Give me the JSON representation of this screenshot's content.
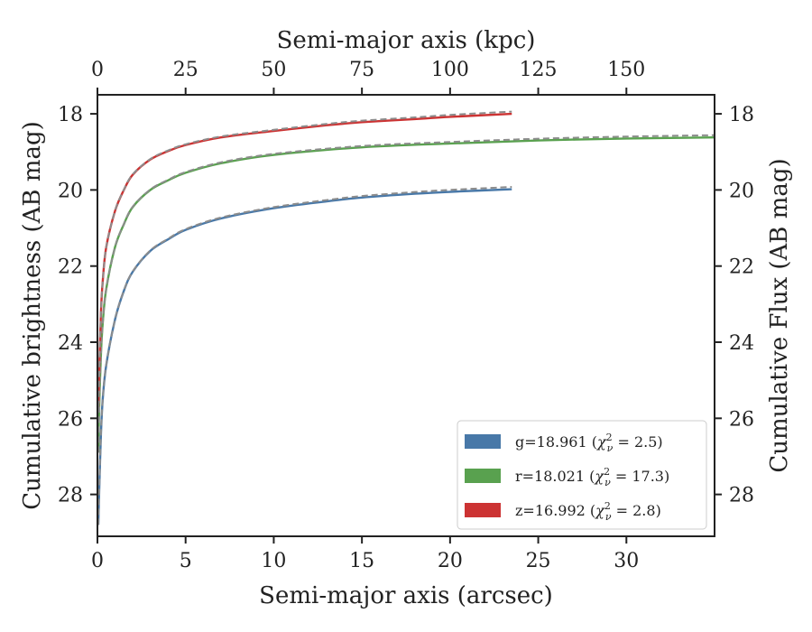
{
  "chart_data": {
    "type": "line",
    "title": "",
    "xlabel": "Semi-major axis (arcsec)",
    "xlabel_top": "Semi-major axis (kpc)",
    "ylabel": "Cumulative brightness (AB mag)",
    "ylabel_right": "Cumulative Flux (AB mag)",
    "xlim": [
      0,
      35
    ],
    "xlim_top": [
      0,
      175
    ],
    "ylim": [
      29.1,
      17.5
    ],
    "y_inverted": true,
    "x_ticks": [
      "0",
      "5",
      "10",
      "15",
      "20",
      "25",
      "30"
    ],
    "x_tick_values": [
      0,
      5,
      10,
      15,
      20,
      25,
      30
    ],
    "x_top_ticks": [
      "0",
      "25",
      "50",
      "75",
      "100",
      "125",
      "150"
    ],
    "x_top_tick_values": [
      0,
      25,
      50,
      75,
      100,
      125,
      150
    ],
    "y_ticks": [
      "18",
      "20",
      "22",
      "24",
      "26",
      "28"
    ],
    "y_tick_values": [
      18,
      20,
      22,
      24,
      26,
      28
    ],
    "legend_position": "lower-right",
    "grid": false,
    "model_style": "gray dashed line over each curve",
    "model_color": "#8c8c8c",
    "series": [
      {
        "name": "g",
        "legend_label": "g=18.961 (χ²ν = 2.5)",
        "legend_prefix": "g=18.961 (",
        "legend_value": " = 2.5)",
        "color": "#4878a8",
        "x": [
          0.05,
          0.1,
          0.2,
          0.3,
          0.5,
          1,
          1.5,
          2,
          3,
          4,
          5,
          7,
          10,
          13,
          15,
          18,
          20,
          23.5
        ],
        "y": [
          28.8,
          27.9,
          26.4,
          25.5,
          24.6,
          23.4,
          22.65,
          22.15,
          21.6,
          21.3,
          21.05,
          20.75,
          20.48,
          20.3,
          20.2,
          20.1,
          20.05,
          19.98
        ]
      },
      {
        "name": "r",
        "legend_label": "r=18.021 (χ²ν = 17.3)",
        "legend_prefix": "r=18.021 (",
        "legend_value": " = 17.3)",
        "color": "#59a14f",
        "x": [
          0.05,
          0.1,
          0.2,
          0.3,
          0.5,
          1,
          1.5,
          2,
          3,
          4,
          5,
          7,
          10,
          15,
          20,
          25,
          30,
          35
        ],
        "y": [
          26.9,
          25.7,
          24.3,
          23.5,
          22.6,
          21.5,
          20.9,
          20.45,
          20.0,
          19.75,
          19.55,
          19.3,
          19.08,
          18.88,
          18.78,
          18.7,
          18.65,
          18.62
        ]
      },
      {
        "name": "z",
        "legend_label": "z=16.992 (χ²ν = 2.8)",
        "legend_prefix": "z=16.992 (",
        "legend_value": " = 2.8)",
        "color": "#cc3333",
        "x": [
          0.05,
          0.1,
          0.2,
          0.3,
          0.5,
          1,
          1.5,
          2,
          3,
          4,
          5,
          7,
          10,
          13,
          15,
          18,
          20,
          23.5
        ],
        "y": [
          25.7,
          24.8,
          23.2,
          22.4,
          21.5,
          20.55,
          20.0,
          19.6,
          19.2,
          18.98,
          18.82,
          18.62,
          18.45,
          18.3,
          18.22,
          18.14,
          18.08,
          18.0
        ]
      }
    ]
  }
}
